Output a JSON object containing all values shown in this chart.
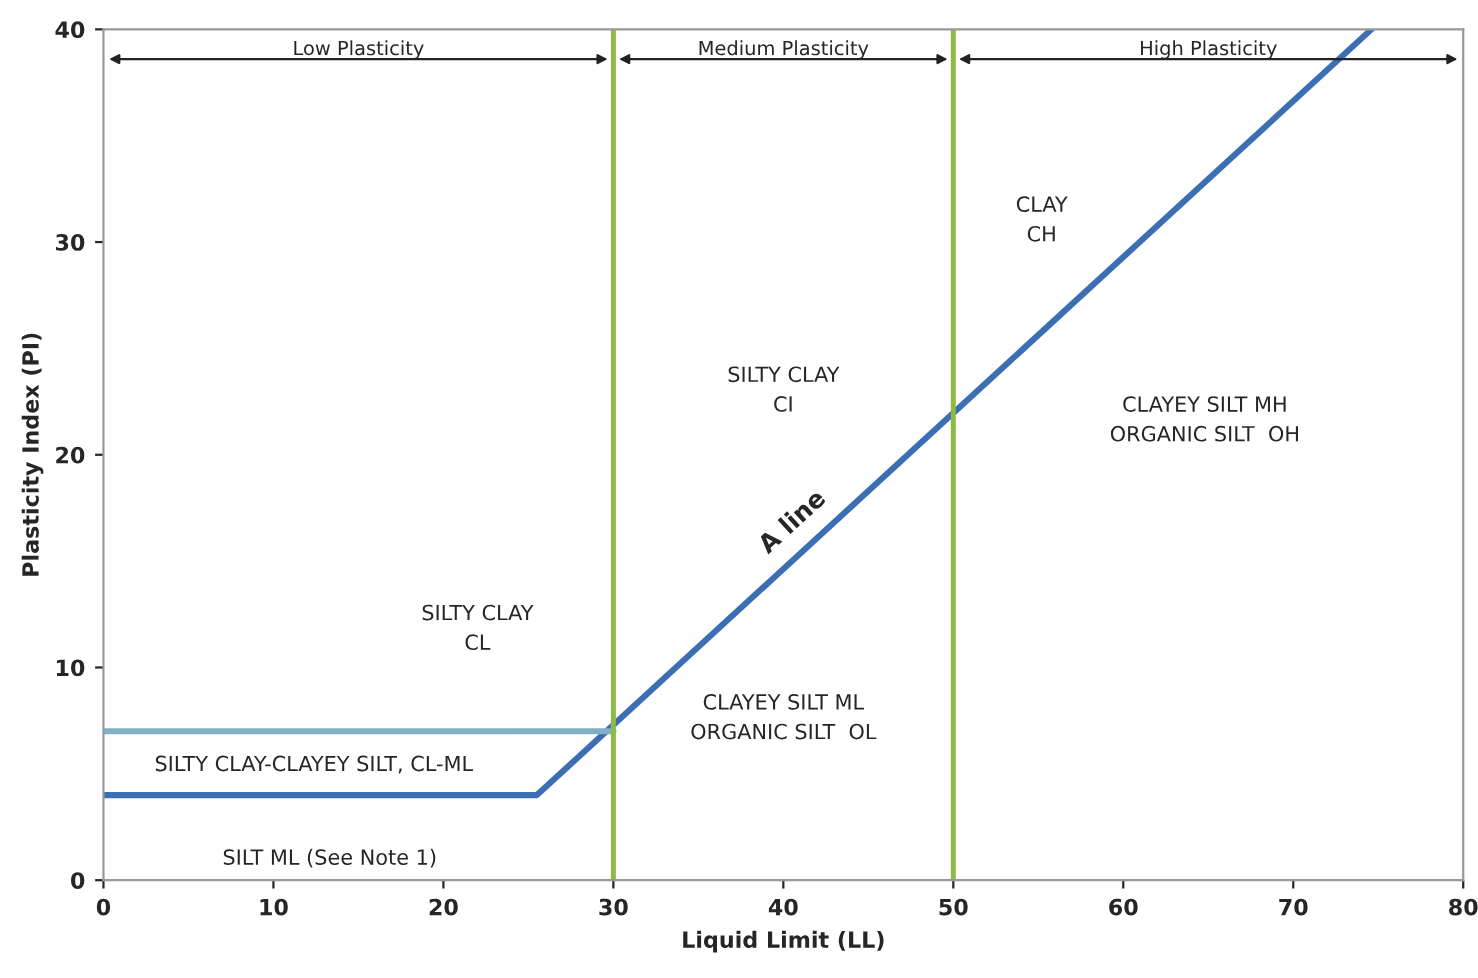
{
  "chart_data": {
    "type": "line",
    "xlabel": "Liquid Limit (LL)",
    "ylabel": "Plasticity Index (PI)",
    "xlim": [
      0,
      80
    ],
    "ylim": [
      0,
      40
    ],
    "xticks": [
      0,
      10,
      20,
      30,
      40,
      50,
      60,
      70,
      80
    ],
    "yticks": [
      0,
      10,
      20,
      30,
      40
    ],
    "grid": false,
    "marker": "none",
    "line_style": "solid",
    "series": [
      {
        "name": "A line",
        "color": "#3c6eb4",
        "x": [
          0,
          25.5,
          74.6
        ],
        "values": [
          4,
          4,
          40
        ]
      },
      {
        "color": "#7fb0c4",
        "x": [
          0,
          30
        ],
        "values": [
          7,
          7
        ]
      }
    ],
    "ref_lines": [
      {
        "axis": "x",
        "value": 30,
        "color": "#8dbb44"
      },
      {
        "axis": "x",
        "value": 50,
        "color": "#8dbb44"
      }
    ],
    "annotations": [
      "Low Plasticity",
      "Medium Plasticity",
      "High Plasticity",
      "SILTY CLAY\nCL",
      "SILTY CLAY\nCI",
      "CLAY\nCH",
      "CLAYEY SILT MH\nORGANIC SILT  OH",
      "CLAYEY SILT ML\nORGANIC SILT  OL",
      "SILTY CLAY-CLAYEY SILT, CL-ML",
      "SILT ML (See Note 1)"
    ]
  }
}
